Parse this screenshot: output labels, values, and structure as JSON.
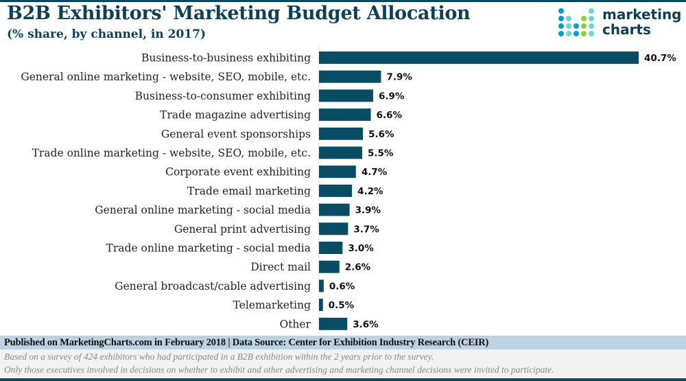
{
  "header": {
    "title": "B2B Exhibitors' Marketing Budget Allocation",
    "subtitle": "(% share, by channel, in 2017)"
  },
  "logo": {
    "line1": "marketing",
    "line2": "charts",
    "colors": {
      "blue": "#0e9cc3",
      "teal": "#6ad6d6",
      "green": "#8ccc3e"
    }
  },
  "colors": {
    "bar": "#084d64",
    "text": "#0e4157"
  },
  "chart_data": {
    "type": "bar",
    "orientation": "horizontal",
    "title": "B2B Exhibitors' Marketing Budget Allocation",
    "subtitle": "(% share, by channel, in 2017)",
    "xlabel": "",
    "ylabel": "",
    "xlim": [
      0,
      40.7
    ],
    "grid": false,
    "legend": "none",
    "categories": [
      "Business-to-business exhibiting",
      "General online marketing - website, SEO, mobile, etc.",
      "Business-to-consumer exhibiting",
      "Trade magazine advertising",
      "General event sponsorships",
      "Trade online marketing - website, SEO, mobile, etc.",
      "Corporate event exhibiting",
      "Trade email marketing",
      "General online marketing - social media",
      "General print advertising",
      "Trade online marketing - social media",
      "Direct mail",
      "General broadcast/cable advertising",
      "Telemarketing",
      "Other"
    ],
    "values": [
      40.7,
      7.9,
      6.9,
      6.6,
      5.6,
      5.5,
      4.7,
      4.2,
      3.9,
      3.7,
      3.0,
      2.6,
      0.6,
      0.5,
      3.6
    ],
    "value_labels": [
      "40.7%",
      "7.9%",
      "6.9%",
      "6.6%",
      "5.6%",
      "5.5%",
      "4.7%",
      "4.2%",
      "3.9%",
      "3.7%",
      "3.0%",
      "2.6%",
      "0.6%",
      "0.5%",
      "3.6%"
    ]
  },
  "footer": {
    "published": "Published on MarketingCharts.com in February 2018 | Data Source: Center for Exhibition Industry Research (CEIR)",
    "note1": "Based on a survey of 424 exhibitors who had participated in a B2B exhibition within the 2 years prior to the survey.",
    "note2": "Only those executives involved in decisions on whether to exhibit and other advertising and marketing channel decisions were invited to participate."
  }
}
